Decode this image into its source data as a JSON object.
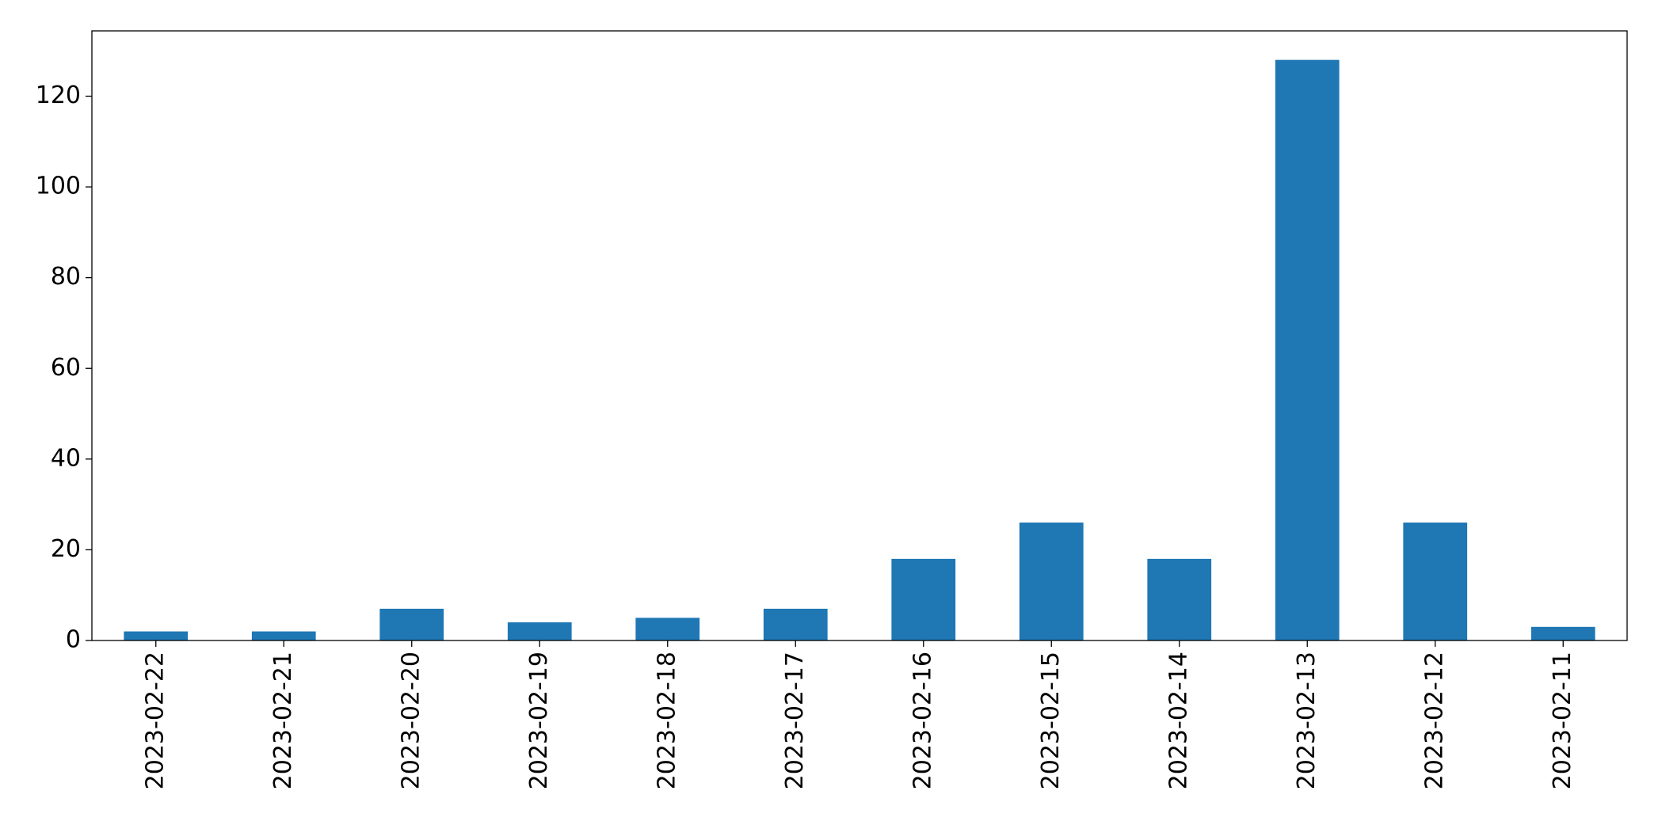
{
  "chart_data": {
    "type": "bar",
    "categories": [
      "2023-02-22",
      "2023-02-21",
      "2023-02-20",
      "2023-02-19",
      "2023-02-18",
      "2023-02-17",
      "2023-02-16",
      "2023-02-15",
      "2023-02-14",
      "2023-02-13",
      "2023-02-12",
      "2023-02-11"
    ],
    "values": [
      2,
      2,
      7,
      4,
      5,
      7,
      18,
      26,
      18,
      128,
      26,
      3
    ],
    "color": "#1f77b4",
    "ylim": [
      0,
      134.4
    ],
    "yticks": [
      0,
      20,
      40,
      60,
      80,
      100,
      120
    ],
    "grid": false
  }
}
